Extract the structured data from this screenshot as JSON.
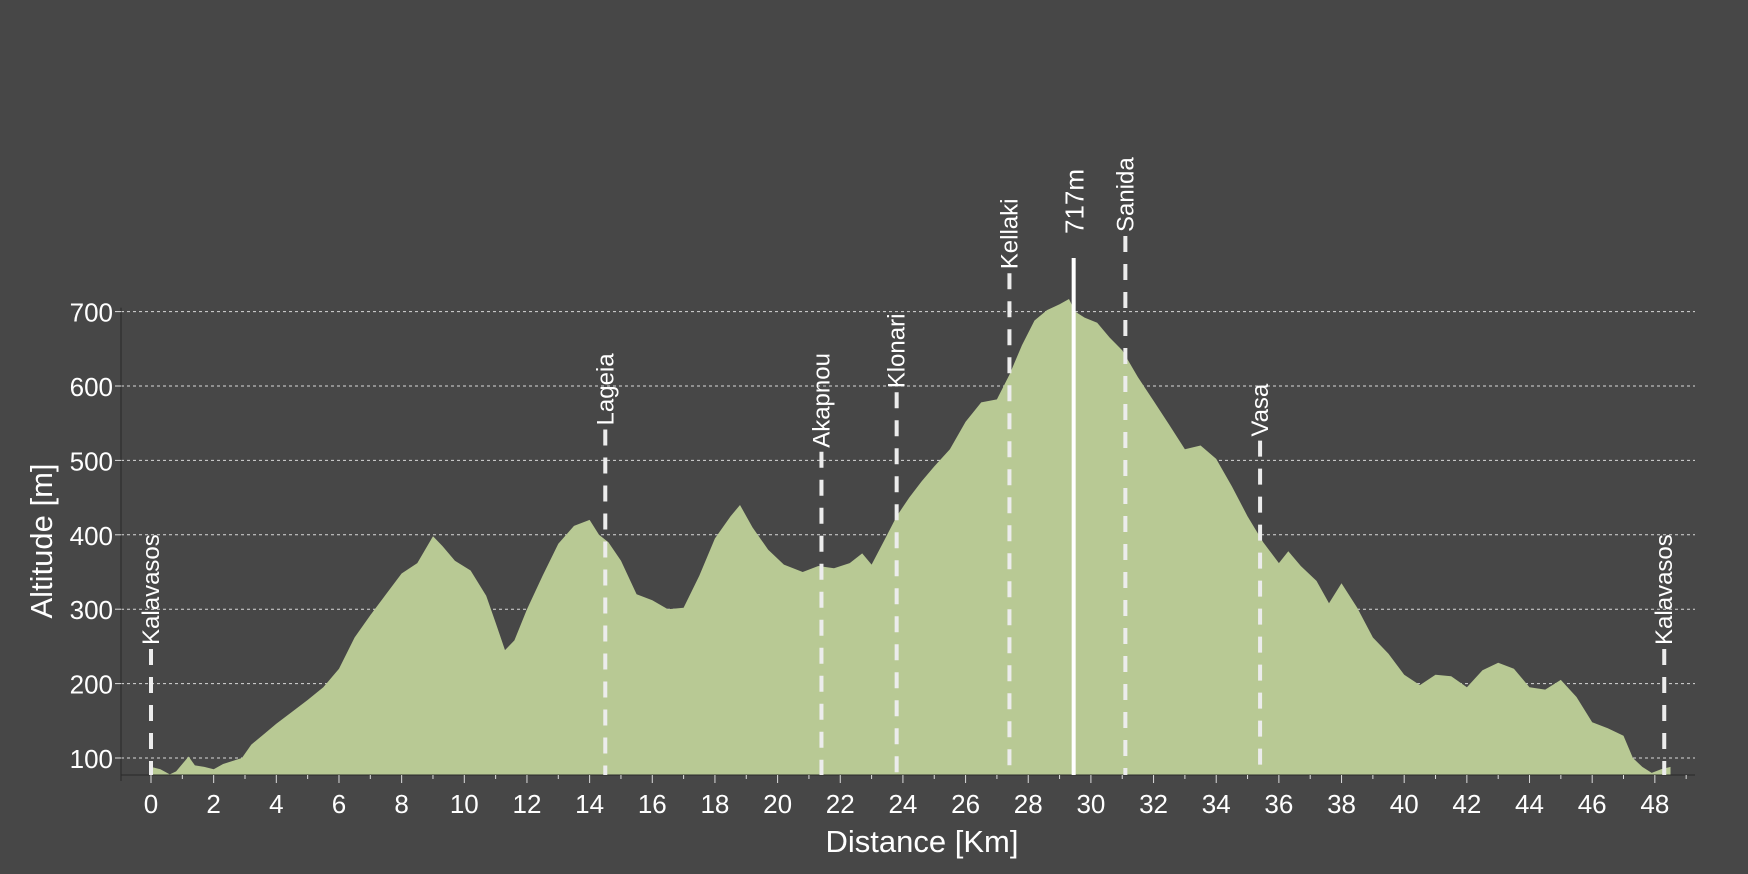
{
  "chart_data": {
    "type": "area",
    "title": "",
    "xlabel": "Distance [Km]",
    "ylabel": "Altitude [m]",
    "xlim": [
      -1,
      49.5
    ],
    "ylim": [
      75,
      725
    ],
    "xticks": [
      0,
      2,
      4,
      6,
      8,
      10,
      12,
      14,
      16,
      18,
      20,
      22,
      24,
      26,
      28,
      30,
      32,
      34,
      36,
      38,
      40,
      42,
      44,
      46,
      48
    ],
    "yticks": [
      100,
      200,
      300,
      400,
      500,
      600,
      700
    ],
    "grid": "horizontal dotted",
    "colors": {
      "background": "#474747",
      "fill": "#b8c994",
      "text": "#ffffff",
      "grid": "#dcdcdc"
    },
    "profile": {
      "x": [
        0,
        0.3,
        0.6,
        0.8,
        1.0,
        1.2,
        1.4,
        1.7,
        2.0,
        2.3,
        2.6,
        2.9,
        3.2,
        3.6,
        4.0,
        4.5,
        5.0,
        5.5,
        6.0,
        6.5,
        7.0,
        7.5,
        8.0,
        8.5,
        9.0,
        9.3,
        9.7,
        10.2,
        10.7,
        11.0,
        11.3,
        11.6,
        12.0,
        12.5,
        13.0,
        13.5,
        14.0,
        14.3,
        14.6,
        15.0,
        15.5,
        16.0,
        16.5,
        17.0,
        17.5,
        18.0,
        18.5,
        18.8,
        19.2,
        19.7,
        20.2,
        20.8,
        21.3,
        21.8,
        22.3,
        22.7,
        23.0,
        23.4,
        23.8,
        24.2,
        24.6,
        25.0,
        25.5,
        26.0,
        26.5,
        27.0,
        27.4,
        27.8,
        28.2,
        28.6,
        29.0,
        29.3,
        29.5,
        29.8,
        30.2,
        30.6,
        31.0,
        31.5,
        32.0,
        32.5,
        33.0,
        33.5,
        34.0,
        34.5,
        35.0,
        35.5,
        36.0,
        36.3,
        36.7,
        37.2,
        37.6,
        38.0,
        38.5,
        39.0,
        39.5,
        40.0,
        40.5,
        41.0,
        41.5,
        42.0,
        42.5,
        43.0,
        43.5,
        44.0,
        44.5,
        45.0,
        45.5,
        46.0,
        46.5,
        47.0,
        47.3,
        47.6,
        47.9,
        48.2,
        48.5
      ],
      "y": [
        88,
        85,
        78,
        82,
        92,
        102,
        90,
        88,
        85,
        92,
        96,
        100,
        118,
        132,
        146,
        162,
        178,
        195,
        220,
        262,
        292,
        320,
        348,
        362,
        398,
        385,
        365,
        352,
        318,
        282,
        245,
        258,
        300,
        345,
        388,
        412,
        420,
        400,
        390,
        365,
        320,
        312,
        300,
        302,
        345,
        395,
        425,
        440,
        410,
        380,
        360,
        350,
        358,
        355,
        362,
        375,
        360,
        392,
        425,
        450,
        472,
        492,
        515,
        552,
        578,
        582,
        615,
        655,
        688,
        702,
        710,
        717,
        700,
        692,
        685,
        665,
        648,
        612,
        580,
        548,
        515,
        520,
        502,
        465,
        425,
        390,
        362,
        378,
        358,
        338,
        308,
        335,
        302,
        262,
        240,
        212,
        198,
        212,
        210,
        195,
        218,
        228,
        220,
        195,
        192,
        205,
        182,
        148,
        140,
        130,
        100,
        88,
        80,
        85,
        88
      ]
    },
    "waypoints": [
      {
        "name": "Kalavasos",
        "x": 0.0,
        "label_top_y": 260
      },
      {
        "name": "Lageia",
        "x": 14.5,
        "label_top_y": 555
      },
      {
        "name": "Akapnou",
        "x": 21.4,
        "label_top_y": 525
      },
      {
        "name": "Klonari",
        "x": 23.8,
        "label_top_y": 605
      },
      {
        "name": "Kellaki",
        "x": 27.4,
        "label_top_y": 765
      },
      {
        "name": "Sanida",
        "x": 31.1,
        "label_top_y": 815
      },
      {
        "name": "Vasa",
        "x": 35.4,
        "label_top_y": 540
      },
      {
        "name": "Kalavasos",
        "x": 48.3,
        "label_top_y": 260
      }
    ],
    "peak": {
      "label": "717m",
      "x": 29.45,
      "y": 717
    }
  }
}
